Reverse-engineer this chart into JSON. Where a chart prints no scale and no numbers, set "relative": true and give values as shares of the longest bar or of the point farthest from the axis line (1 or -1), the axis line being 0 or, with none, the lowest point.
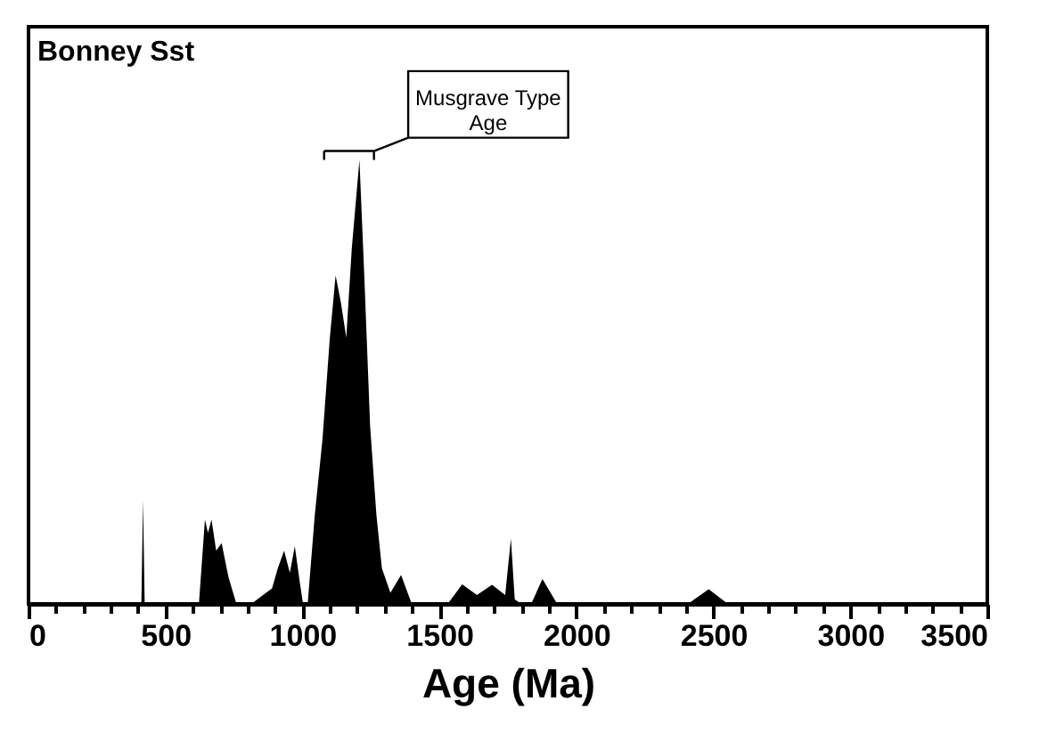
{
  "chart_data": {
    "type": "area",
    "title": "Bonney Sst",
    "xlabel": "Age (Ma)",
    "relative": true,
    "color": "#000000",
    "x": [
      0,
      395,
      412,
      418,
      424,
      622,
      644,
      655,
      668,
      685,
      705,
      730,
      759,
      813,
      889,
      910,
      933,
      954,
      972,
      990,
      1002,
      1019,
      1045,
      1073,
      1100,
      1121,
      1140,
      1160,
      1180,
      1208,
      1225,
      1247,
      1270,
      1290,
      1321,
      1360,
      1399,
      1530,
      1583,
      1637,
      1692,
      1740,
      1761,
      1775,
      1800,
      1835,
      1876,
      1930,
      2407,
      2483,
      2553,
      3500
    ],
    "values": [
      0,
      0,
      0,
      0.234,
      0,
      0,
      0.19,
      0.16,
      0.19,
      0.12,
      0.137,
      0.06,
      0,
      0,
      0.035,
      0.08,
      0.12,
      0.07,
      0.13,
      0.05,
      0,
      0,
      0.2,
      0.37,
      0.6,
      0.74,
      0.68,
      0.6,
      0.8,
      1.0,
      0.75,
      0.4,
      0.2,
      0.08,
      0.025,
      0.065,
      0,
      0,
      0.044,
      0.02,
      0.043,
      0.02,
      0.147,
      0.01,
      0,
      0,
      0.056,
      0,
      0,
      0.033,
      0,
      0
    ],
    "xlim": [
      0,
      3500
    ],
    "xticks": [
      0,
      {
        "value": 100,
        "label": null
      },
      {
        "value": 200,
        "label": null
      },
      {
        "value": 300,
        "label": null
      },
      {
        "value": 400,
        "label": null
      },
      500,
      {
        "value": 600,
        "label": null
      },
      {
        "value": 700,
        "label": null
      },
      {
        "value": 800,
        "label": null
      },
      {
        "value": 900,
        "label": null
      },
      1000,
      {
        "value": 1100,
        "label": null
      },
      {
        "value": 1200,
        "label": null
      },
      {
        "value": 1300,
        "label": null
      },
      {
        "value": 1400,
        "label": null
      },
      1500,
      {
        "value": 1600,
        "label": null
      },
      {
        "value": 1700,
        "label": null
      },
      {
        "value": 1800,
        "label": null
      },
      {
        "value": 1900,
        "label": null
      },
      2000,
      {
        "value": 2100,
        "label": null
      },
      {
        "value": 2200,
        "label": null
      },
      {
        "value": 2300,
        "label": null
      },
      {
        "value": 2400,
        "label": null
      },
      2500,
      {
        "value": 2600,
        "label": null
      },
      {
        "value": 2700,
        "label": null
      },
      {
        "value": 2800,
        "label": null
      },
      {
        "value": 2900,
        "label": null
      },
      3000,
      {
        "value": 3100,
        "label": null
      },
      {
        "value": 3200,
        "label": null
      },
      {
        "value": 3300,
        "label": null
      },
      {
        "value": 3400,
        "label": null
      },
      3500
    ],
    "annotations": [
      "Musgrave Type Age"
    ],
    "grid": false
  }
}
